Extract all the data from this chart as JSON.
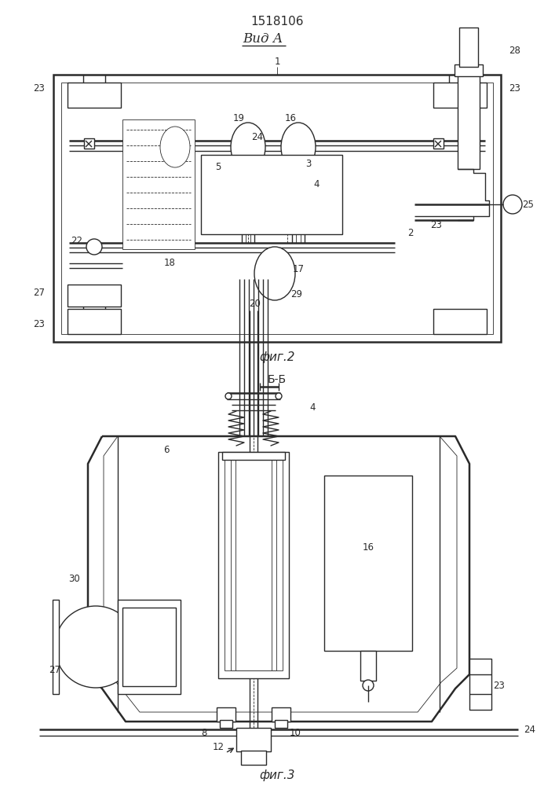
{
  "patent_number": "1518106",
  "view_label": "Вид А",
  "fig2_label": "фиг.2",
  "fig3_label": "фиг.3",
  "section_label": "Б-Б",
  "bg_color": "#ffffff",
  "line_color": "#2a2a2a",
  "lw": 1.0,
  "tlw": 0.6,
  "thw": 1.8
}
